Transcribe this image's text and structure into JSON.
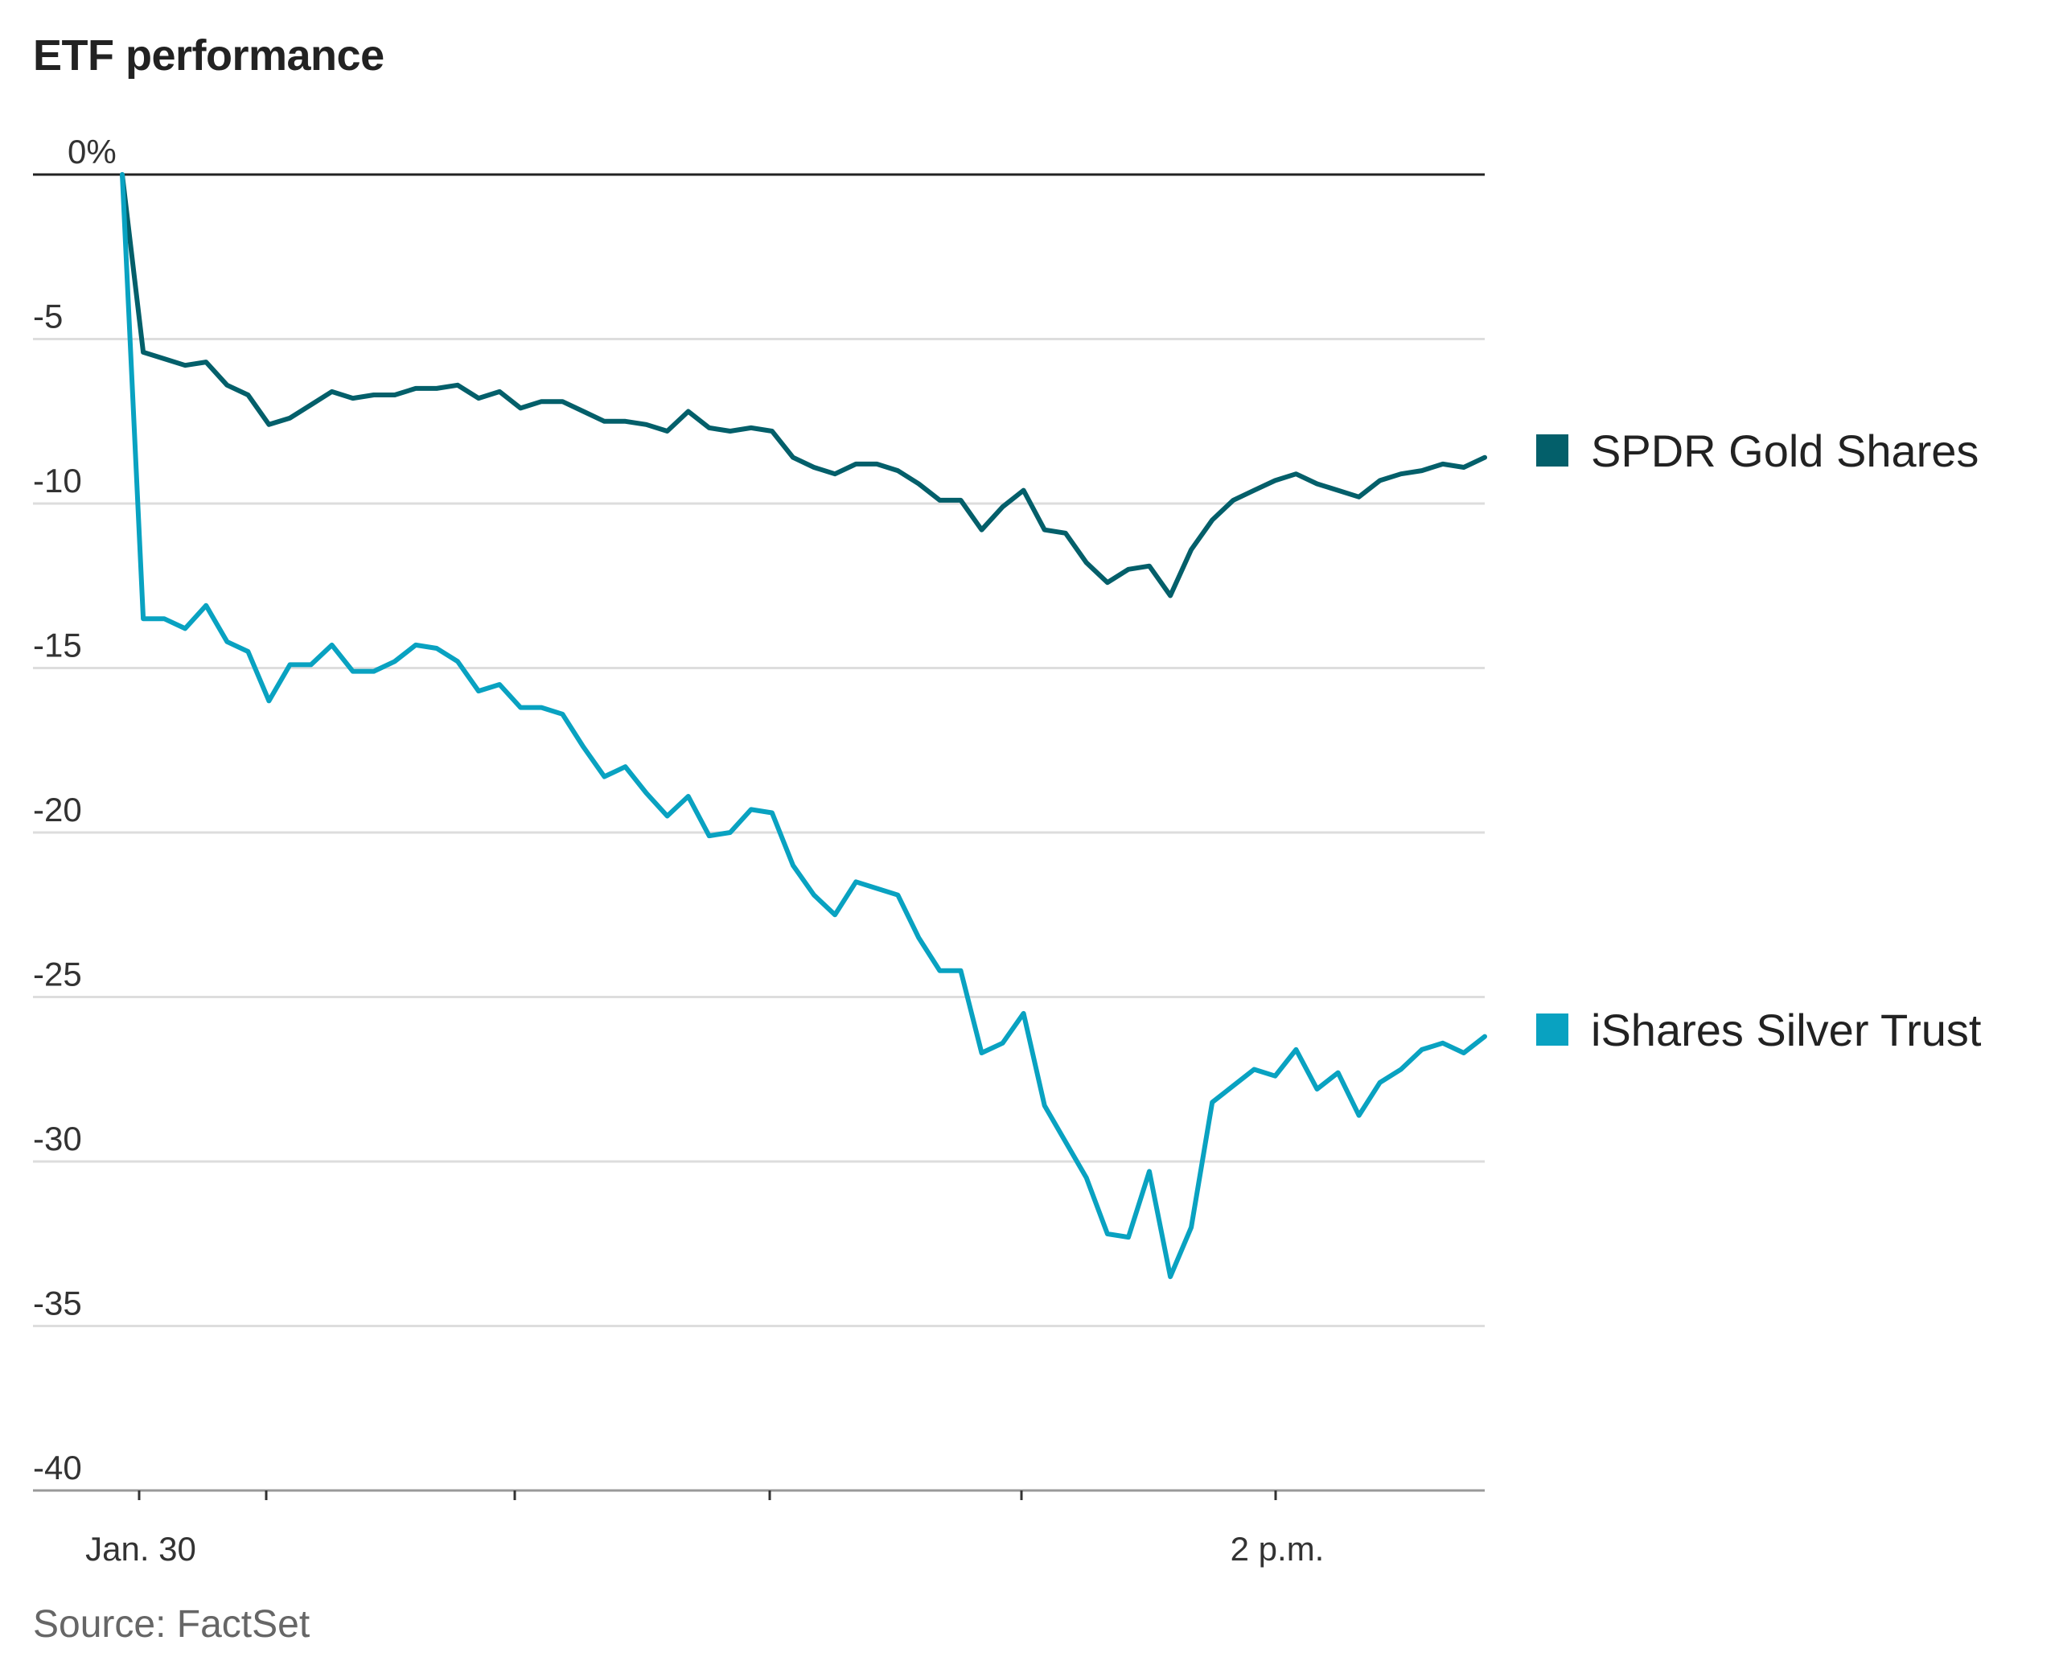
{
  "title": "ETF performance",
  "source": "Source: FactSet",
  "colors": {
    "gold": "#035f6a",
    "silver": "#09a2c1",
    "grid": "#dddddd",
    "zero": "#222222"
  },
  "chart_data": {
    "type": "line",
    "title": "ETF performance",
    "y_ticks": [
      "0%",
      "-5",
      "-10",
      "-15",
      "-20",
      "-25",
      "-30",
      "-35",
      "-40"
    ],
    "y_tick_values": [
      0,
      -5,
      -10,
      -15,
      -20,
      -25,
      -30,
      -35,
      -40
    ],
    "ylim": [
      -40,
      0
    ],
    "x_tick_labels": [
      "Jan. 30",
      "2 p.m."
    ],
    "grid": "horizontal",
    "legend": "right",
    "series": [
      {
        "name": "SPDR Gold Shares",
        "color": "#035f6a",
        "values": [
          0,
          -5.4,
          -5.6,
          -5.8,
          -5.7,
          -6.4,
          -6.7,
          -7.6,
          -7.4,
          -7.0,
          -6.6,
          -6.8,
          -6.7,
          -6.7,
          -6.5,
          -6.5,
          -6.4,
          -6.8,
          -6.6,
          -7.1,
          -6.9,
          -6.9,
          -7.2,
          -7.5,
          -7.5,
          -7.6,
          -7.8,
          -7.2,
          -7.7,
          -7.8,
          -7.7,
          -7.8,
          -8.6,
          -8.9,
          -9.1,
          -8.8,
          -8.8,
          -9.0,
          -9.4,
          -9.9,
          -9.9,
          -10.8,
          -10.1,
          -9.6,
          -10.8,
          -10.9,
          -11.8,
          -12.4,
          -12.0,
          -11.9,
          -12.8,
          -11.4,
          -10.5,
          -9.9,
          -9.6,
          -9.3,
          -9.1,
          -9.4,
          -9.6,
          -9.8,
          -9.3,
          -9.1,
          -9.0,
          -8.8,
          -8.9,
          -8.6
        ],
        "legend_label": "SPDR Gold Shares"
      },
      {
        "name": "iShares Silver Trust",
        "color": "#09a2c1",
        "values": [
          0,
          -13.5,
          -13.5,
          -13.8,
          -13.1,
          -14.2,
          -14.5,
          -16.0,
          -14.9,
          -14.9,
          -14.3,
          -15.1,
          -15.1,
          -14.8,
          -14.3,
          -14.4,
          -14.8,
          -15.7,
          -15.5,
          -16.2,
          -16.2,
          -16.4,
          -17.4,
          -18.3,
          -18.0,
          -18.8,
          -19.5,
          -18.9,
          -20.1,
          -20.0,
          -19.3,
          -19.4,
          -21.0,
          -21.9,
          -22.5,
          -21.5,
          -21.7,
          -21.9,
          -23.2,
          -24.2,
          -24.2,
          -26.7,
          -26.4,
          -25.5,
          -28.3,
          -29.4,
          -30.5,
          -32.2,
          -32.3,
          -30.3,
          -33.5,
          -32.0,
          -28.2,
          -27.7,
          -27.2,
          -27.4,
          -26.6,
          -27.8,
          -27.3,
          -28.6,
          -27.6,
          -27.2,
          -26.6,
          -26.4,
          -26.7,
          -26.2
        ],
        "legend_label": "iShares Silver Trust"
      }
    ]
  }
}
